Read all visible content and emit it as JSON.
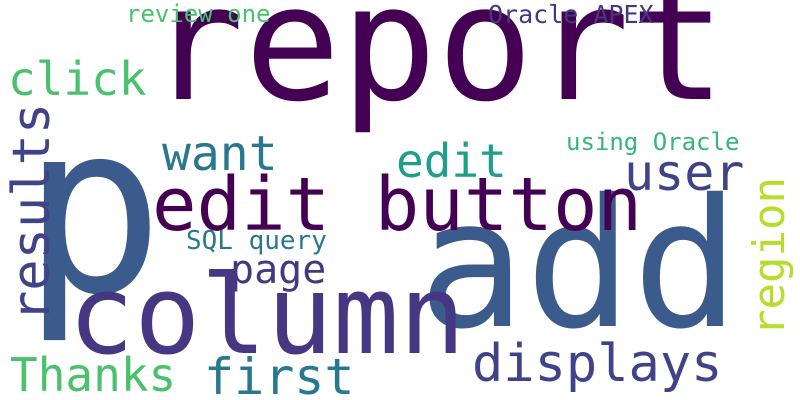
{
  "words": [
    {
      "id": "report",
      "text": "report",
      "color": "#440154"
    },
    {
      "id": "add",
      "text": "add",
      "color": "#3b5b8c"
    },
    {
      "id": "p",
      "text": "p",
      "color": "#3b5b8c"
    },
    {
      "id": "column",
      "text": "column",
      "color": "#453781"
    },
    {
      "id": "edit_button",
      "text": "edit button",
      "color": "#440154"
    },
    {
      "id": "edit",
      "text": "edit",
      "color": "#1f9e89"
    },
    {
      "id": "click",
      "text": "click",
      "color": "#4ac16d"
    },
    {
      "id": "want",
      "text": "want",
      "color": "#2a788e"
    },
    {
      "id": "user",
      "text": "user",
      "color": "#404387"
    },
    {
      "id": "results",
      "text": "results",
      "color": "#404387"
    },
    {
      "id": "region",
      "text": "region",
      "color": "#b5de2b"
    },
    {
      "id": "page",
      "text": "page",
      "color": "#453781"
    },
    {
      "id": "sql_query",
      "text": "SQL query",
      "color": "#2a788e"
    },
    {
      "id": "displays",
      "text": "displays",
      "color": "#404387"
    },
    {
      "id": "first",
      "text": "first",
      "color": "#2a788e"
    },
    {
      "id": "thanks",
      "text": "Thanks",
      "color": "#4ac16d"
    },
    {
      "id": "review_one",
      "text": "review one",
      "color": "#4ac16d"
    },
    {
      "id": "oracle_apex",
      "text": "Oracle APEX",
      "color": "#453781"
    },
    {
      "id": "using_oracle",
      "text": "using Oracle",
      "color": "#35b779"
    }
  ]
}
